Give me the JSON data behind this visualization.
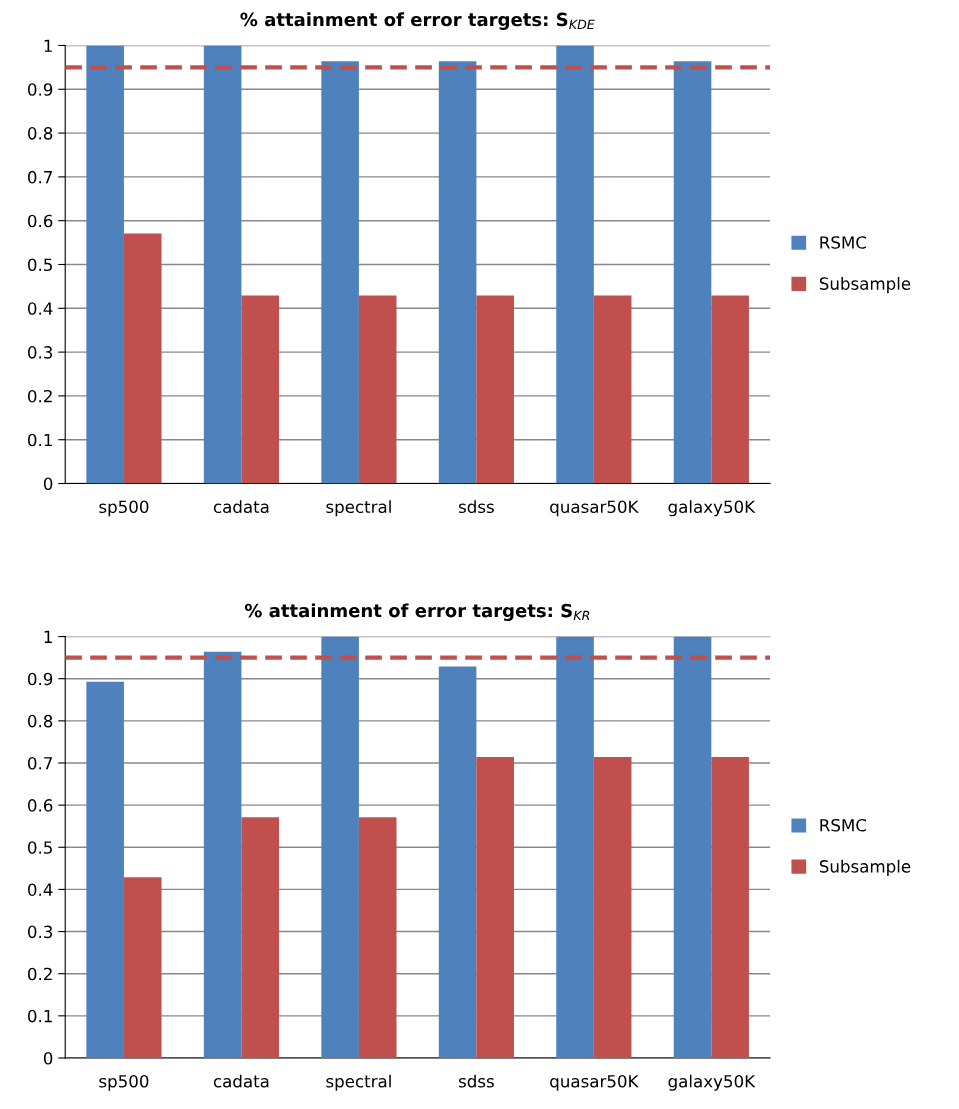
{
  "chart_data": [
    {
      "type": "bar",
      "title": "% attainment of error targets: S$_{KDE}$",
      "categories": [
        "sp500",
        "cadata",
        "spectral",
        "sdss",
        "quasar50K",
        "galaxy50K"
      ],
      "series": [
        {
          "name": "RSMC",
          "color": "#4f81bd",
          "values": [
            1,
            1,
            0.964,
            0.964,
            1,
            0.964
          ]
        },
        {
          "name": "Subsample",
          "color": "#c0504d",
          "values": [
            0.571,
            0.429,
            0.429,
            0.429,
            0.429,
            0.429
          ]
        }
      ],
      "ylim": [
        0,
        1
      ],
      "yticks": [
        0,
        0.1,
        0.2,
        0.3,
        0.4,
        0.5,
        0.6,
        0.7,
        0.8,
        0.9,
        1
      ],
      "ref_lines": [
        {
          "axis": "y",
          "value": 0.95,
          "color": "#c0504d",
          "line_style": "dashed"
        }
      ],
      "grid": "y",
      "legend": "right"
    },
    {
      "type": "bar",
      "title": "% attainment of error targets: S$_{KR}$",
      "categories": [
        "sp500",
        "cadata",
        "spectral",
        "sdss",
        "quasar50K",
        "galaxy50K"
      ],
      "series": [
        {
          "name": "RSMC",
          "color": "#4f81bd",
          "values": [
            0.893,
            0.964,
            1,
            0.929,
            1,
            1
          ]
        },
        {
          "name": "Subsample",
          "color": "#c0504d",
          "values": [
            0.429,
            0.571,
            0.571,
            0.714,
            0.714,
            0.714
          ]
        }
      ],
      "ylim": [
        0,
        1
      ],
      "yticks": [
        0,
        0.1,
        0.2,
        0.3,
        0.4,
        0.5,
        0.6,
        0.7,
        0.8,
        0.9,
        1
      ],
      "ref_lines": [
        {
          "axis": "y",
          "value": 0.95,
          "color": "#c0504d",
          "line_style": "dashed"
        }
      ],
      "grid": "y",
      "legend": "right"
    }
  ]
}
